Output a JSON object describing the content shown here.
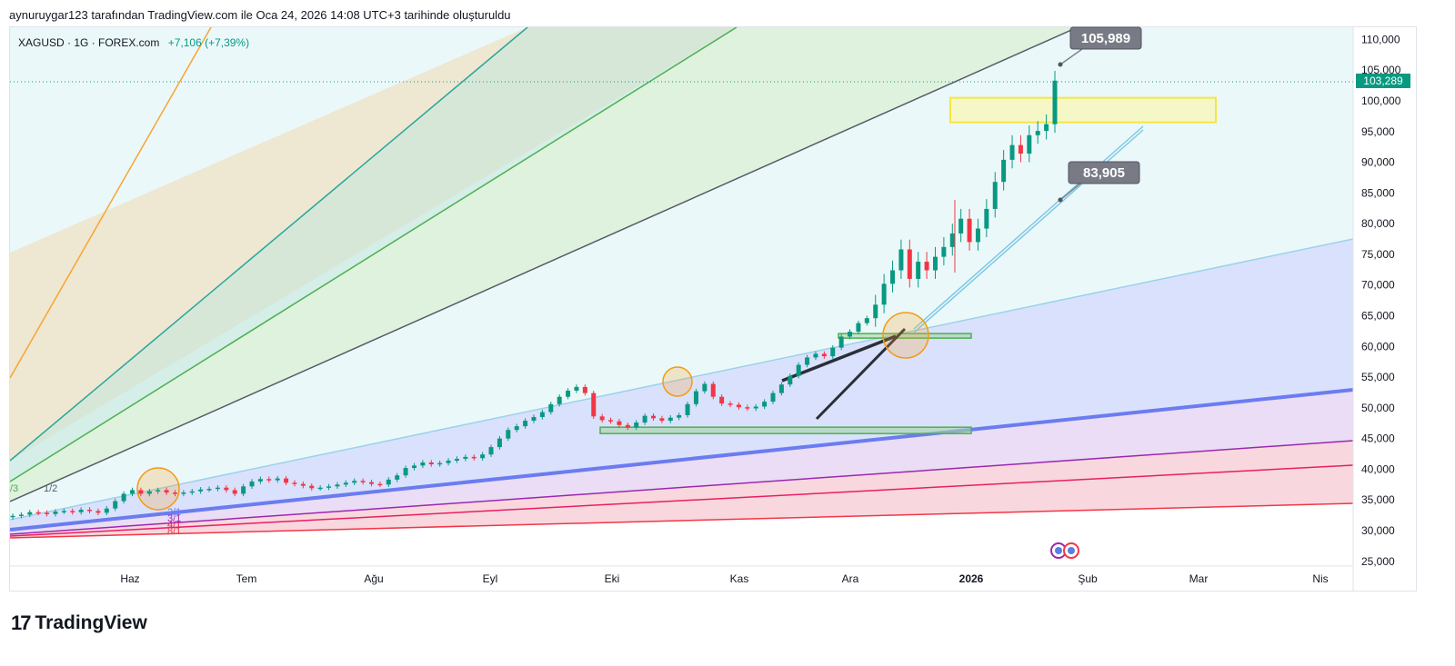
{
  "header": {
    "caption": "aynuruygar123 tarafından TradingView.com ile Oca 24, 2026 14:08 UTC+3 tarihinde oluşturuldu"
  },
  "symbol": {
    "name": "XAGUSD · 1G · FOREX.com",
    "change": "+7,106 (+7,39%)",
    "last_price": "103,289"
  },
  "footer": {
    "logo_text": "TradingView"
  },
  "colors": {
    "up": "#089981",
    "down": "#f23645",
    "fan_orange": "#f7a531",
    "fan_teal": "#26a69a",
    "fan_green": "#4caf50",
    "fan_gray": "#555b66",
    "fan_lightblue": "#9ad3e8",
    "fan_blue": "#6b7cf0",
    "fan_purple": "#9c27b0",
    "fan_red": "#f23645"
  },
  "annotations": {
    "callout_high": "105,989",
    "callout_low": "83,905",
    "fan_labels": [
      "/3",
      "1/2",
      "2/1",
      "3/1",
      "4/1",
      "8/1"
    ]
  },
  "chart_data": {
    "type": "candlestick",
    "x_ticks": [
      "Haz",
      "Tem",
      "Ağu",
      "Eyl",
      "Eki",
      "Kas",
      "Ara",
      "2026",
      "Şub",
      "Mar",
      "Nis"
    ],
    "y_ticks": [
      "110,000",
      "105,000",
      "100,000",
      "95,000",
      "90,000",
      "85,000",
      "80,000",
      "75,000",
      "70,000",
      "65,000",
      "60,000",
      "55,000",
      "50,000",
      "45,000",
      "40,000",
      "35,000",
      "30,000",
      "25,000"
    ],
    "ylim": [
      23500,
      112500
    ],
    "last_price": 103.289,
    "series_close": [
      32.4,
      32.6,
      33.0,
      32.9,
      32.7,
      33.1,
      33.2,
      33.0,
      33.4,
      33.2,
      32.9,
      33.6,
      34.8,
      36.0,
      36.6,
      36.0,
      36.4,
      36.6,
      36.2,
      36.0,
      36.2,
      36.4,
      36.7,
      36.8,
      37.0,
      36.6,
      36.0,
      37.2,
      38.0,
      38.4,
      38.2,
      38.5,
      37.8,
      37.6,
      37.3,
      36.9,
      37.0,
      37.2,
      37.5,
      37.8,
      38.1,
      37.9,
      37.6,
      37.5,
      38.3,
      39.0,
      40.2,
      40.6,
      41.1,
      40.8,
      41.0,
      41.4,
      41.7,
      42.0,
      41.8,
      42.4,
      43.6,
      45.0,
      46.4,
      47.0,
      47.9,
      48.5,
      49.3,
      50.6,
      51.8,
      52.8,
      53.4,
      52.4,
      48.6,
      48.0,
      47.8,
      47.2,
      46.8,
      47.6,
      48.7,
      48.3,
      47.9,
      48.4,
      48.8,
      50.6,
      52.7,
      53.9,
      51.8,
      50.7,
      50.5,
      50.1,
      49.9,
      50.2,
      51.0,
      52.4,
      53.8,
      55.2,
      57.0,
      58.2,
      58.8,
      58.4,
      59.8,
      61.6,
      62.4,
      63.8,
      64.6,
      66.8,
      70.2,
      72.4,
      75.8,
      71.0,
      73.8,
      72.4,
      74.6,
      76.2,
      78.4,
      80.8,
      77.0,
      79.2,
      82.4,
      86.8,
      90.4,
      92.8,
      91.4,
      94.4,
      95.1,
      96.2,
      103.289
    ]
  },
  "highlight": {
    "zone_top": 100.5,
    "zone_bottom": 96.5,
    "support_1": 46.4,
    "support_2": 61.8
  }
}
